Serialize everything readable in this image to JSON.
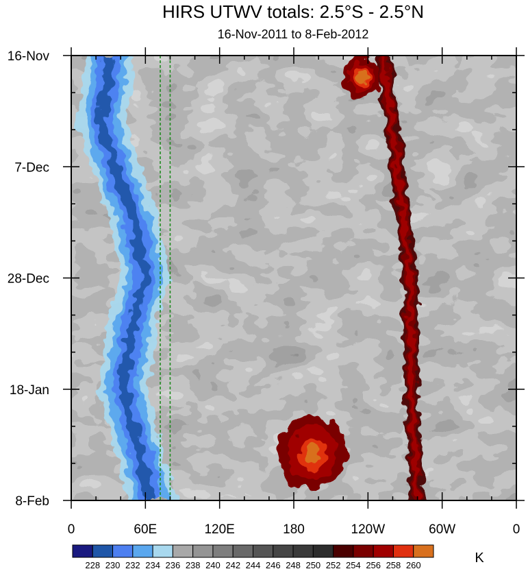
{
  "chart_data": {
    "type": "heatmap",
    "title": "HIRS UTWV totals: 2.5°S - 2.5°N",
    "subtitle": "16-Nov-2011 to 8-Feb-2012",
    "x_ticks": [
      {
        "lon": 0,
        "label": "0"
      },
      {
        "lon": 60,
        "label": "60E"
      },
      {
        "lon": 120,
        "label": "120E"
      },
      {
        "lon": 180,
        "label": "180"
      },
      {
        "lon": 240,
        "label": "120W"
      },
      {
        "lon": 300,
        "label": "60W"
      },
      {
        "lon": 360,
        "label": "0"
      }
    ],
    "xlim": [
      0,
      360
    ],
    "y_ticks": [
      {
        "day": 0,
        "label": "16-Nov"
      },
      {
        "day": 21,
        "label": "7-Dec"
      },
      {
        "day": 42,
        "label": "28-Dec"
      },
      {
        "day": 63,
        "label": "18-Jan"
      },
      {
        "day": 84,
        "label": "8-Feb"
      }
    ],
    "ylim": [
      0,
      84
    ],
    "reference_lines_lon": [
      72,
      80
    ],
    "reference_line_color": "#1f8a1f",
    "colorbar": {
      "unit": "K",
      "levels": [
        228,
        230,
        232,
        234,
        236,
        238,
        240,
        242,
        244,
        246,
        248,
        250,
        252,
        254,
        256,
        258,
        260
      ],
      "colors": [
        "#1a1a80",
        "#1f56a8",
        "#4d7ff0",
        "#5aa7ee",
        "#a8d8ee",
        "#a8a8a8",
        "#949494",
        "#7e7e7e",
        "#696969",
        "#555555",
        "#454545",
        "#3a3a3a",
        "#2d2d2d",
        "#4a0000",
        "#7a0000",
        "#a00000",
        "#e03010",
        "#d8701e"
      ]
    },
    "features": [
      {
        "kind": "cold_band",
        "description": "Tb low (blue)",
        "lon_path": [
          [
            0,
            30
          ],
          [
            5,
            30
          ],
          [
            12,
            24
          ],
          [
            21,
            35
          ],
          [
            30,
            50
          ],
          [
            42,
            60
          ],
          [
            50,
            50
          ],
          [
            63,
            42
          ],
          [
            72,
            52
          ],
          [
            84,
            65
          ]
        ],
        "width_lon": 40
      },
      {
        "kind": "warm_band",
        "lon_path": [
          [
            0,
            252
          ],
          [
            21,
            264
          ],
          [
            42,
            274
          ],
          [
            63,
            275
          ],
          [
            84,
            280
          ]
        ],
        "width_lon": 12
      },
      {
        "kind": "warm_blob",
        "lon": 235,
        "day": 4,
        "rlon": 15,
        "rday": 4
      },
      {
        "kind": "warm_blob",
        "lon": 195,
        "day": 75,
        "rlon": 28,
        "rday": 7
      }
    ]
  }
}
